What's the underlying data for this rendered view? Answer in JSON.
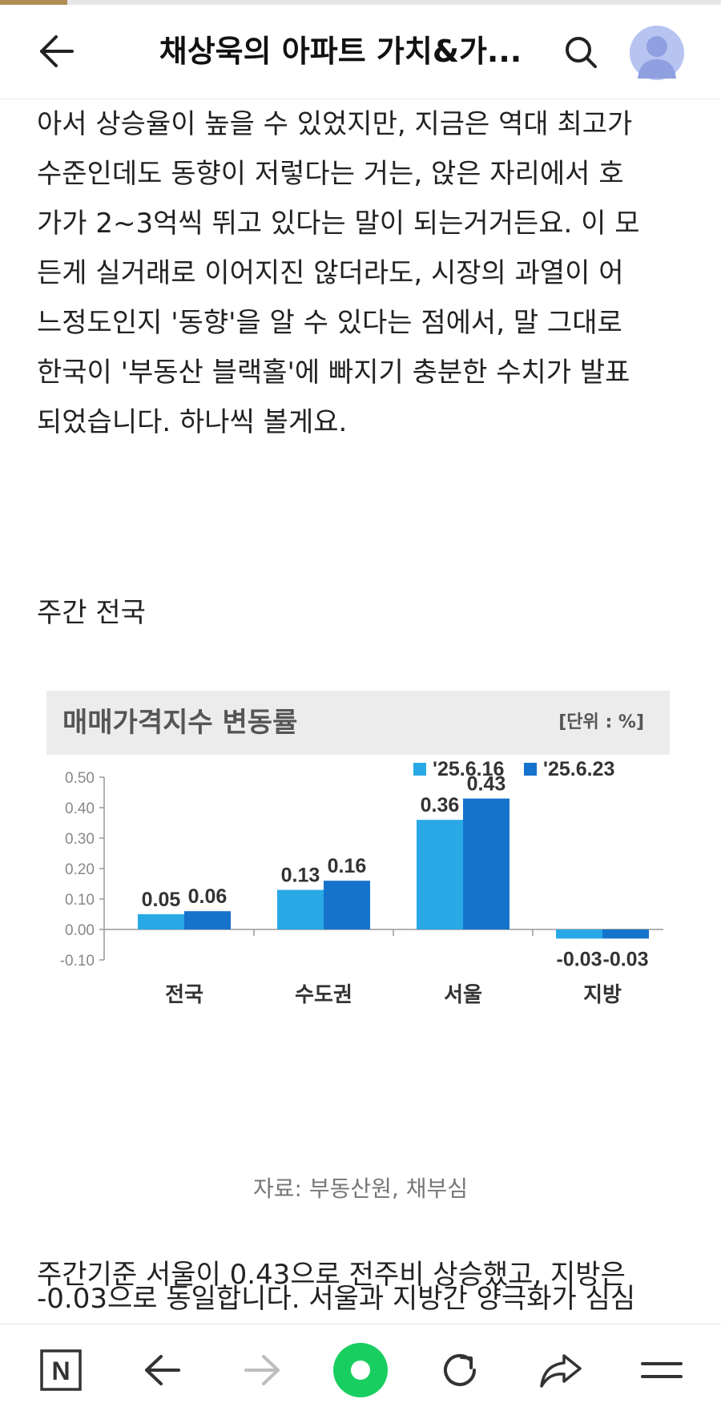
{
  "header": {
    "back_icon": "arrow-left-icon",
    "title": "채상욱의 아파트 가치&가...",
    "search_icon": "search-icon",
    "avatar_icon": "user-avatar-icon"
  },
  "article": {
    "paragraph1_lines": [
      "아서 상승율이 높을 수 있었지만, 지금은 역대 최고가",
      "수준인데도 동향이 저렇다는 거는, 앉은 자리에서 호",
      "가가 2~3억씩 뛰고 있다는 말이 되는거거든요. 이 모",
      "든게 실거래로 이어지진 않더라도, 시장의 과열이 어",
      "느정도인지 '동향'을 알 수 있다는 점에서, 말 그대로",
      "한국이 '부동산 블랙홀'에 빠지기 충분한 수치가 발표",
      "되었습니다. 하나씩 볼게요."
    ],
    "section_title": "주간 전국",
    "caption": "자료: 부동산원, 채부심",
    "paragraph2": "주간기준 서울이 0.43으로 전주비 상승했고, 지방은",
    "paragraph2_cut": "-0.03으로 동일합니다. 서울과 지방간 양극화가 심심"
  },
  "chart_data": {
    "type": "bar",
    "title": "매매가격지수 변동률",
    "unit": "[단위 : %]",
    "categories": [
      "전국",
      "수도권",
      "서울",
      "지방"
    ],
    "series": [
      {
        "name": "'25.6.16",
        "color": "#29a8e6",
        "values": [
          0.05,
          0.13,
          0.36,
          -0.03
        ]
      },
      {
        "name": "'25.6.23",
        "color": "#1673cc",
        "values": [
          0.06,
          0.16,
          0.43,
          -0.03
        ]
      }
    ],
    "data_labels": [
      [
        "0.05",
        "0.13",
        "0.36",
        "-0.03"
      ],
      [
        "0.06",
        "0.16",
        "0.43",
        "-0.03"
      ]
    ],
    "y_ticks": [
      "0.50",
      "0.40",
      "0.30",
      "0.20",
      "0.10",
      "0.00",
      "-0.10"
    ],
    "ylim": [
      -0.1,
      0.5
    ],
    "legend_position": "top-right",
    "grid": false
  },
  "bottom_nav": {
    "items": [
      {
        "name": "naver-home-icon",
        "glyph": "N"
      },
      {
        "name": "back-icon"
      },
      {
        "name": "forward-icon"
      },
      {
        "name": "green-circle-icon"
      },
      {
        "name": "refresh-icon"
      },
      {
        "name": "share-icon"
      },
      {
        "name": "menu-icon"
      }
    ]
  },
  "progress": {
    "percent": 9.3,
    "color": "#b08d57"
  }
}
